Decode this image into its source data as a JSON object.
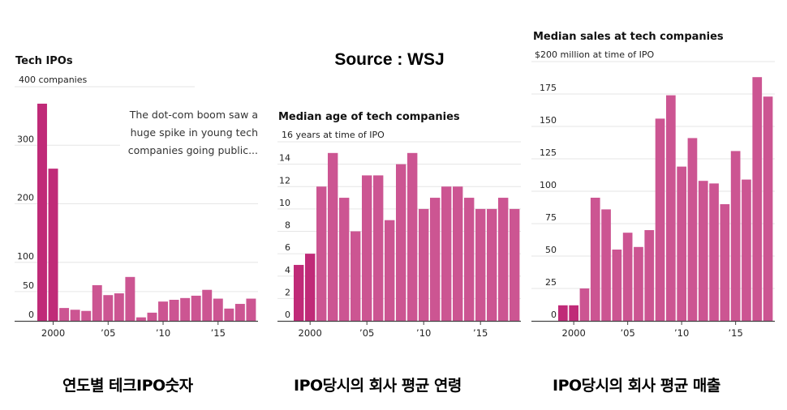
{
  "source_label": "Source : WSJ",
  "captions": [
    "연도별 테크IPO숫자",
    "IPO당시의 회사 평균 연령",
    "IPO당시의 회사 평균 매출"
  ],
  "colors": {
    "highlight_bar": "#C02A78",
    "bar": "#CC5592",
    "gridline": "#E6E6E6",
    "axis": "#444444",
    "text": "#111111"
  },
  "annotation": {
    "lines": [
      "The dot-com boom saw a",
      "huge spike in young tech",
      "companies going public..."
    ]
  },
  "chart_data": [
    {
      "type": "bar",
      "title": "Tech IPOs",
      "top_label": "400 companies",
      "xlabel": "",
      "ylabel": "",
      "ylim": [
        0,
        400
      ],
      "yticks": [
        0,
        50,
        100,
        200,
        300
      ],
      "ytick_labels": [
        "0",
        "50",
        "100",
        "200",
        "300"
      ],
      "x": [
        1999,
        2000,
        2001,
        2002,
        2003,
        2004,
        2005,
        2006,
        2007,
        2008,
        2009,
        2010,
        2011,
        2012,
        2013,
        2014,
        2015,
        2016,
        2017,
        2018
      ],
      "xtick_years": [
        2000,
        2005,
        2010,
        2015
      ],
      "xtick_labels": [
        "2000",
        "’05",
        "’10",
        "’15"
      ],
      "values": [
        371,
        260,
        22,
        19,
        17,
        61,
        44,
        47,
        75,
        6,
        14,
        33,
        36,
        39,
        43,
        53,
        38,
        21,
        29,
        38
      ],
      "highlighted": [
        1999,
        2000
      ],
      "grid": true,
      "legend": "none"
    },
    {
      "type": "bar",
      "title": "Median age of tech companies",
      "top_label": "16 years at time of IPO",
      "xlabel": "",
      "ylabel": "",
      "ylim": [
        0,
        16
      ],
      "yticks": [
        0,
        2,
        4,
        6,
        8,
        10,
        12,
        14
      ],
      "ytick_labels": [
        "0",
        "2",
        "4",
        "6",
        "8",
        "10",
        "12",
        "14"
      ],
      "x": [
        1999,
        2000,
        2001,
        2002,
        2003,
        2004,
        2005,
        2006,
        2007,
        2008,
        2009,
        2010,
        2011,
        2012,
        2013,
        2014,
        2015,
        2016,
        2017,
        2018
      ],
      "xtick_years": [
        2000,
        2005,
        2010,
        2015
      ],
      "xtick_labels": [
        "2000",
        "’05",
        "’10",
        "’15"
      ],
      "values": [
        5,
        6,
        12,
        15,
        11,
        8,
        13,
        13,
        9,
        14,
        15,
        10,
        11,
        12,
        12,
        11,
        10,
        10,
        11,
        10
      ],
      "highlighted": [
        1999,
        2000
      ],
      "grid": true,
      "legend": "none"
    },
    {
      "type": "bar",
      "title": "Median sales at tech companies",
      "top_label": "$200 million at time of IPO",
      "xlabel": "",
      "ylabel": "",
      "ylim": [
        0,
        200
      ],
      "yticks": [
        0,
        25,
        50,
        75,
        100,
        125,
        150,
        175
      ],
      "ytick_labels": [
        "0",
        "25",
        "50",
        "75",
        "100",
        "125",
        "150",
        "175"
      ],
      "x": [
        1999,
        2000,
        2001,
        2002,
        2003,
        2004,
        2005,
        2006,
        2007,
        2008,
        2009,
        2010,
        2011,
        2012,
        2013,
        2014,
        2015,
        2016,
        2017,
        2018
      ],
      "xtick_years": [
        2000,
        2005,
        2010,
        2015
      ],
      "xtick_labels": [
        "2000",
        "’05",
        "’10",
        "’15"
      ],
      "values": [
        12,
        12,
        25,
        95,
        86,
        55,
        68,
        57,
        70,
        156,
        174,
        119,
        141,
        108,
        106,
        90,
        131,
        109,
        188,
        173
      ],
      "highlighted": [
        1999,
        2000
      ],
      "grid": true,
      "legend": "none"
    }
  ]
}
